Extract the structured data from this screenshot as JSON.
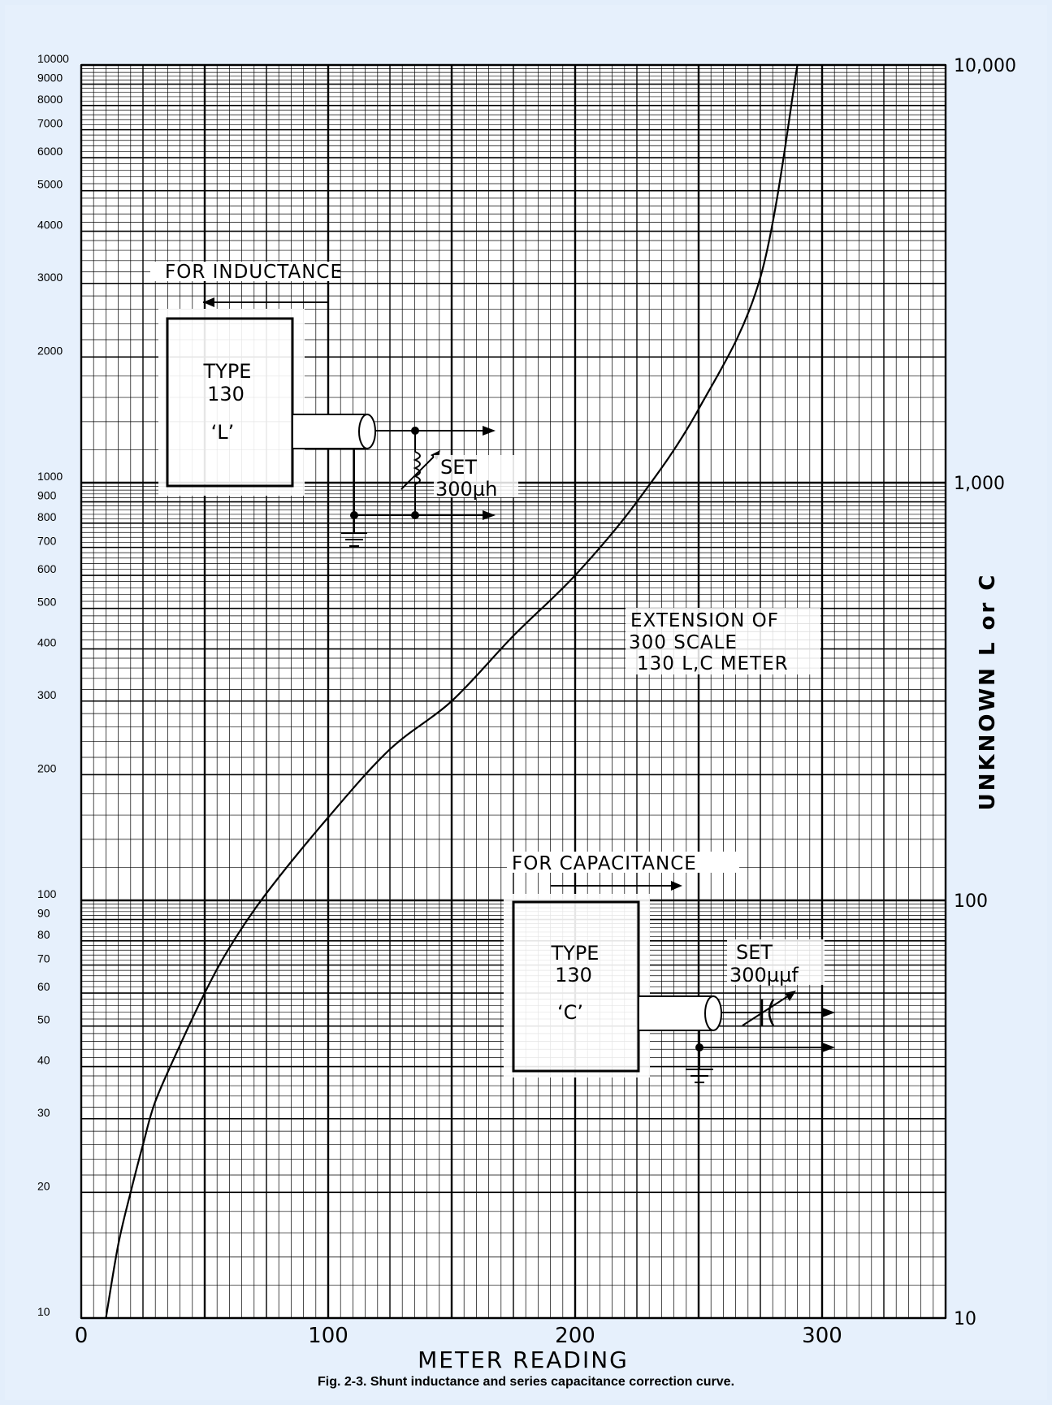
{
  "caption": "Fig.  2-3.   Shunt inductance and series capacitance correction curve.",
  "chart_data": {
    "type": "line",
    "xlabel": "METER READING",
    "ylabel": "UNKNOWN  L or C",
    "xlim": [
      0,
      350
    ],
    "ylim": [
      10,
      10000
    ],
    "y_scale": "log",
    "grid": true,
    "x_ticks": [
      "0",
      "100",
      "200",
      "300"
    ],
    "y_ticks_left": [
      "10000",
      "9000",
      "8000",
      "7000",
      "6000",
      "5000",
      "4000",
      "3000",
      "2000",
      "1000",
      "900",
      "800",
      "700",
      "600",
      "500",
      "400",
      "300",
      "200",
      "100",
      "90",
      "80",
      "70",
      "60",
      "50",
      "40",
      "30",
      "20",
      "10"
    ],
    "y_ticks_right": [
      "10,000",
      "1,000",
      "100",
      "10"
    ],
    "series": [
      {
        "x": [
          10,
          15,
          20,
          25,
          30,
          40,
          50,
          60,
          75,
          100,
          125,
          150,
          175,
          200,
          225,
          250,
          275,
          290
        ],
        "y": [
          10,
          15,
          20,
          26,
          33,
          45,
          60,
          77,
          104,
          158,
          230,
          300,
          430,
          600,
          900,
          1500,
          3100,
          10000
        ]
      }
    ],
    "annotations": {
      "inductance_label": "FOR  INDUCTANCE",
      "inductance_box": [
        "TYPE",
        "130",
        "‘L’"
      ],
      "inductance_set": [
        "SET",
        "300µh"
      ],
      "extension_note": [
        "EXTENSION  OF",
        "300  SCALE",
        "130 L,C METER"
      ],
      "capacitance_label": "FOR  CAPACITANCE",
      "capacitance_box": [
        "TYPE",
        "130",
        "‘C’"
      ],
      "capacitance_set": [
        "SET",
        "300µµf"
      ]
    }
  }
}
